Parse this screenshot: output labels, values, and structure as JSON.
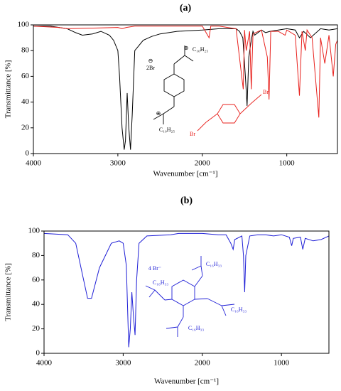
{
  "chart_data": [
    {
      "type": "line",
      "title": "(a)",
      "x_label": "Wavenumber [cm⁻¹]",
      "y_label": "Transmittance [%]",
      "xlim": [
        4000,
        400
      ],
      "ylim": [
        0,
        100
      ],
      "xticks": [
        4000,
        3000,
        2000,
        1000
      ],
      "yticks": [
        0,
        20,
        40,
        60,
        80,
        100
      ],
      "series": [
        {
          "color": "#000000",
          "x": [
            4000,
            3800,
            3600,
            3500,
            3420,
            3300,
            3200,
            3100,
            3050,
            3000,
            2980,
            2950,
            2925,
            2910,
            2890,
            2870,
            2850,
            2830,
            2800,
            2700,
            2600,
            2500,
            2300,
            2000,
            1800,
            1700,
            1600,
            1560,
            1520,
            1490,
            1470,
            1450,
            1420,
            1400,
            1380,
            1300,
            1250,
            1200,
            1100,
            1000,
            900,
            850,
            800,
            720,
            600,
            500,
            400
          ],
          "values": [
            99,
            99,
            97,
            94,
            92,
            93,
            95,
            92,
            88,
            80,
            60,
            20,
            3,
            10,
            47,
            20,
            3,
            30,
            80,
            88,
            91,
            93,
            95,
            96,
            97,
            97,
            97,
            95,
            90,
            60,
            37,
            75,
            88,
            95,
            92,
            96,
            94,
            95,
            96,
            97,
            96,
            90,
            95,
            90,
            97,
            96,
            97
          ]
        },
        {
          "color": "#e8201c",
          "x": [
            4000,
            3700,
            3600,
            3000,
            2950,
            2900,
            2800,
            2000,
            1920,
            1900,
            1800,
            1700,
            1600,
            1515,
            1500,
            1480,
            1440,
            1420,
            1400,
            1300,
            1230,
            1210,
            1190,
            1100,
            1020,
            1000,
            900,
            850,
            820,
            780,
            760,
            700,
            620,
            600,
            550,
            500,
            450,
            420,
            400
          ],
          "values": [
            99,
            98,
            97,
            98,
            97,
            98,
            99,
            99,
            90,
            99,
            99,
            98,
            97,
            50,
            96,
            80,
            95,
            50,
            93,
            96,
            75,
            42,
            95,
            95,
            92,
            96,
            92,
            45,
            95,
            80,
            96,
            90,
            28,
            90,
            70,
            92,
            60,
            85,
            88
          ]
        }
      ],
      "annotations": [
        "⊕",
        "C₁₀H₂₅",
        "⊖",
        "2Br",
        "⊕",
        "C₁₀H₂₅",
        "Br",
        "Br"
      ]
    },
    {
      "type": "line",
      "title": "(b)",
      "x_label": "Wavenumber [cm⁻¹]",
      "y_label": "Transmittance [%]",
      "xlim": [
        4000,
        400
      ],
      "ylim": [
        0,
        100
      ],
      "xticks": [
        4000,
        3000,
        2000,
        1000
      ],
      "yticks": [
        0,
        20,
        40,
        60,
        80,
        100
      ],
      "series": [
        {
          "color": "#1f1fd6",
          "x": [
            4000,
            3700,
            3600,
            3500,
            3450,
            3400,
            3300,
            3150,
            3050,
            3000,
            2960,
            2930,
            2910,
            2890,
            2870,
            2850,
            2830,
            2800,
            2700,
            2400,
            2300,
            2000,
            1800,
            1700,
            1640,
            1610,
            1590,
            1500,
            1480,
            1465,
            1450,
            1400,
            1300,
            1200,
            1100,
            1000,
            900,
            870,
            850,
            760,
            730,
            700,
            600,
            500,
            400
          ],
          "values": [
            98,
            97,
            90,
            60,
            45,
            45,
            70,
            90,
            92,
            90,
            72,
            5,
            20,
            50,
            30,
            15,
            60,
            90,
            96,
            97,
            98,
            98,
            97,
            97,
            90,
            85,
            93,
            96,
            80,
            50,
            80,
            96,
            97,
            97,
            96,
            97,
            95,
            88,
            94,
            95,
            85,
            94,
            92,
            93,
            96
          ]
        }
      ],
      "annotations": [
        "4 Br⁻",
        "C₁₆H₃₃",
        "C₁₆H₃₃",
        "C₁₆H₃₃",
        "C₁₆H₃₃"
      ]
    }
  ]
}
